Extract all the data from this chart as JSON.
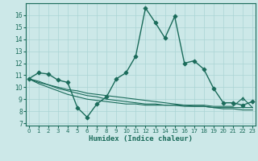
{
  "xlabel": "Humidex (Indice chaleur)",
  "bg_color": "#cce8e8",
  "line_color": "#1a6b5a",
  "grid_color": "#aad4d4",
  "x_ticks": [
    0,
    1,
    2,
    3,
    4,
    5,
    6,
    7,
    8,
    9,
    10,
    11,
    12,
    13,
    14,
    15,
    16,
    17,
    18,
    19,
    20,
    21,
    22,
    23
  ],
  "y_ticks": [
    7,
    8,
    9,
    10,
    11,
    12,
    13,
    14,
    15,
    16
  ],
  "ylim": [
    6.8,
    17.0
  ],
  "xlim": [
    -0.3,
    23.3
  ],
  "curves": [
    {
      "y": [
        10.7,
        11.2,
        11.1,
        10.6,
        10.4,
        8.3,
        7.5,
        8.6,
        9.2,
        10.7,
        11.2,
        12.6,
        16.6,
        15.4,
        14.1,
        15.9,
        12.0,
        12.2,
        11.5,
        9.9,
        8.7,
        8.7,
        8.5,
        8.8
      ],
      "marker": "D",
      "markersize": 2.5,
      "lw": 1.0
    },
    {
      "y": [
        10.7,
        10.5,
        10.2,
        10.0,
        9.8,
        9.7,
        9.5,
        9.4,
        9.3,
        9.2,
        9.1,
        9.0,
        8.9,
        8.8,
        8.7,
        8.6,
        8.5,
        8.4,
        8.4,
        8.3,
        8.2,
        8.2,
        8.1,
        8.1
      ],
      "marker": null,
      "markersize": 0,
      "lw": 0.8
    },
    {
      "y": [
        10.7,
        10.4,
        10.2,
        9.9,
        9.7,
        9.5,
        9.3,
        9.2,
        9.0,
        8.9,
        8.8,
        8.7,
        8.6,
        8.6,
        8.5,
        8.5,
        8.4,
        8.4,
        8.4,
        8.3,
        8.3,
        8.3,
        8.3,
        8.3
      ],
      "marker": null,
      "markersize": 0,
      "lw": 0.8
    },
    {
      "y": [
        10.7,
        10.3,
        10.0,
        9.7,
        9.4,
        9.2,
        9.0,
        8.9,
        8.8,
        8.7,
        8.6,
        8.6,
        8.5,
        8.5,
        8.5,
        8.5,
        8.5,
        8.5,
        8.5,
        8.4,
        8.4,
        8.4,
        9.1,
        8.3
      ],
      "marker": "^",
      "markersize": 2.5,
      "lw": 0.8,
      "marker_indices": [
        22
      ]
    }
  ]
}
